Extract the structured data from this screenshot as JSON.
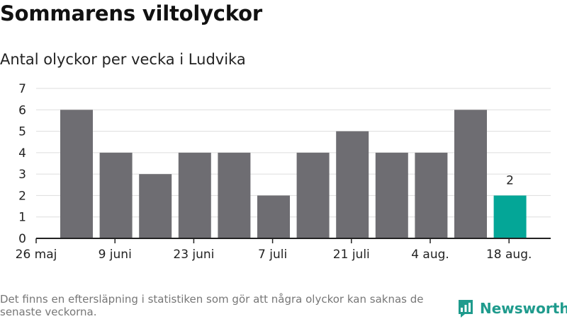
{
  "title": "Sommarens viltolyckor",
  "subtitle": "Antal olyckor per vecka i Ludvika",
  "footnote": "Det finns en eftersläpning i statistiken som gör att några olyckor kan saknas de senaste veckorna.",
  "brand": {
    "name": "Newsworthy",
    "icon": "newsworthy-logo-icon"
  },
  "colors": {
    "bar": "#6e6d72",
    "highlight": "#04a697",
    "grid": "#dddddd",
    "axis": "#222222"
  },
  "chart_data": {
    "type": "bar",
    "x_tick_labels": [
      "26 maj",
      "9 juni",
      "23 juni",
      "7 juli",
      "21 juli",
      "4 aug.",
      "18 aug."
    ],
    "values": [
      6,
      4,
      3,
      4,
      4,
      2,
      4,
      5,
      4,
      4,
      6,
      2
    ],
    "highlight_index": 11,
    "highlight_label": "2",
    "y_ticks": [
      "0",
      "1",
      "2",
      "3",
      "4",
      "5",
      "6",
      "7"
    ],
    "ylim": [
      0,
      7
    ],
    "grid": true,
    "legend": "none"
  }
}
